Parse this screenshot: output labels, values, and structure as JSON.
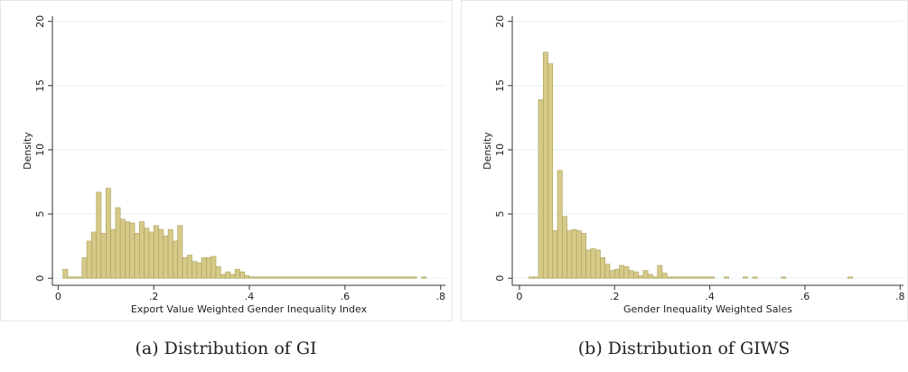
{
  "chart_data": [
    {
      "type": "histogram",
      "x_label": "Export Value Weighted Gender Inequality Index",
      "y_label": "Density",
      "caption": "(a) Distribution of GI",
      "bins": [
        0.01,
        0.02,
        0.03,
        0.04,
        0.05,
        0.06,
        0.07,
        0.08,
        0.09,
        0.1,
        0.11,
        0.12,
        0.13,
        0.14,
        0.15,
        0.16,
        0.17,
        0.18,
        0.19,
        0.2,
        0.21,
        0.22,
        0.23,
        0.24,
        0.25,
        0.26,
        0.27,
        0.28,
        0.29,
        0.3,
        0.31,
        0.32,
        0.33,
        0.34,
        0.35,
        0.36,
        0.37,
        0.38,
        0.39,
        0.4,
        0.41,
        0.42,
        0.43,
        0.44,
        0.45,
        0.46,
        0.47,
        0.48,
        0.49,
        0.5,
        0.51,
        0.52,
        0.53,
        0.54,
        0.55,
        0.56,
        0.57,
        0.58,
        0.59,
        0.6,
        0.61,
        0.62,
        0.63,
        0.64,
        0.65,
        0.66,
        0.67,
        0.68,
        0.69,
        0.7,
        0.71,
        0.72,
        0.73,
        0.74,
        0.75,
        0.76,
        0.77
      ],
      "counts": [
        0.7,
        0.1,
        0.1,
        0.1,
        1.6,
        2.9,
        3.6,
        6.7,
        3.5,
        7.0,
        3.8,
        5.5,
        4.6,
        4.4,
        4.3,
        3.5,
        4.4,
        3.9,
        3.6,
        4.1,
        3.8,
        3.3,
        3.8,
        2.9,
        4.1,
        1.6,
        1.8,
        1.3,
        1.2,
        1.6,
        1.6,
        1.7,
        0.9,
        0.3,
        0.5,
        0.3,
        0.7,
        0.5,
        0.2,
        0.1,
        0.1,
        0.1,
        0.1,
        0.1,
        0.1,
        0.1,
        0.1,
        0.1,
        0.1,
        0.1,
        0.1,
        0.1,
        0.1,
        0.1,
        0.1,
        0.1,
        0.1,
        0.1,
        0.1,
        0.1,
        0.1,
        0.1,
        0.1,
        0.1,
        0.1,
        0.1,
        0.1,
        0.1,
        0.1,
        0.1,
        0.1,
        0.1,
        0.1,
        0.1,
        0,
        0.1
      ],
      "color": "#d6ca8a",
      "edge_color": "#a99d55",
      "xlim": [
        -0.012,
        0.81
      ],
      "ylim": [
        -0.55,
        20.4
      ],
      "xticks": [
        0,
        {
          "value": 0.2,
          "label": ".2"
        },
        {
          "value": 0.4,
          "label": ".4"
        },
        {
          "value": 0.6,
          "label": ".6"
        },
        {
          "value": 0.8,
          "label": ".8"
        }
      ],
      "yticks": [
        0,
        5,
        10,
        15,
        20
      ],
      "grid": true
    },
    {
      "type": "histogram",
      "x_label": "Gender Inequality Weighted Sales",
      "y_label": "Density",
      "caption": "(b) Distribution of GIWS",
      "bins": [
        0.02,
        0.03,
        0.04,
        0.05,
        0.06,
        0.07,
        0.08,
        0.09,
        0.1,
        0.11,
        0.12,
        0.13,
        0.14,
        0.15,
        0.16,
        0.17,
        0.18,
        0.19,
        0.2,
        0.21,
        0.22,
        0.23,
        0.24,
        0.25,
        0.26,
        0.27,
        0.28,
        0.29,
        0.3,
        0.31,
        0.32,
        0.33,
        0.34,
        0.35,
        0.36,
        0.37,
        0.38,
        0.39,
        0.4,
        0.41,
        0.42,
        0.43,
        0.44,
        0.45,
        0.46,
        0.47,
        0.48,
        0.49,
        0.5,
        0.51,
        0.52,
        0.53,
        0.54,
        0.55,
        0.56,
        0.57,
        0.58,
        0.59,
        0.6,
        0.61,
        0.62,
        0.63,
        0.64,
        0.65,
        0.66,
        0.67,
        0.68,
        0.69,
        0.7
      ],
      "counts": [
        0.1,
        0.1,
        13.9,
        17.6,
        16.7,
        3.7,
        8.4,
        4.8,
        3.7,
        3.8,
        3.7,
        3.5,
        2.2,
        2.3,
        2.2,
        1.6,
        1.1,
        0.6,
        0.7,
        1.0,
        0.9,
        0.6,
        0.5,
        0.2,
        0.6,
        0.3,
        0.1,
        1.0,
        0.4,
        0.1,
        0.1,
        0.1,
        0.1,
        0.1,
        0.1,
        0.1,
        0.1,
        0.1,
        0.1,
        0,
        0,
        0.1,
        0,
        0,
        0,
        0.1,
        0,
        0.1,
        0,
        0,
        0,
        0,
        0,
        0.1,
        0,
        0,
        0,
        0,
        0,
        0,
        0,
        0,
        0,
        0,
        0,
        0,
        0,
        0.1
      ],
      "color": "#d6ca8a",
      "edge_color": "#a99d55",
      "xlim": [
        -0.015,
        0.807
      ],
      "ylim": [
        -0.55,
        20.4
      ],
      "xticks": [
        0,
        {
          "value": 0.2,
          "label": ".2"
        },
        {
          "value": 0.4,
          "label": ".4"
        },
        {
          "value": 0.6,
          "label": ".6"
        },
        {
          "value": 0.8,
          "label": ".8"
        }
      ],
      "yticks": [
        0,
        5,
        10,
        15,
        20
      ],
      "grid": true
    }
  ]
}
